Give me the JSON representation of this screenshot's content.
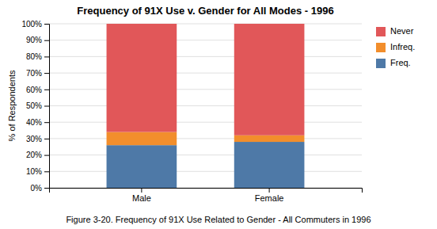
{
  "chart_data": {
    "type": "bar",
    "title": "Frequency of 91X Use v. Gender for All Modes - 1996",
    "caption": "Figure 3-20. Frequency of 91X Use Related to Gender - All Commuters in 1996",
    "ylabel": "% of Respondents",
    "categories": [
      "Male",
      "Female"
    ],
    "series": [
      {
        "name": "Freq.",
        "values": [
          26,
          28
        ]
      },
      {
        "name": "Infreq.",
        "values": [
          8,
          4
        ]
      },
      {
        "name": "Never",
        "values": [
          66,
          68
        ]
      }
    ],
    "stacked": true,
    "ylim": [
      0,
      100
    ],
    "yticks": [
      {
        "value": 0,
        "label": "0%"
      },
      {
        "value": 10,
        "label": "10%"
      },
      {
        "value": 20,
        "label": "20%"
      },
      {
        "value": 30,
        "label": "30%"
      },
      {
        "value": 40,
        "label": "40%"
      },
      {
        "value": 50,
        "label": "50%"
      },
      {
        "value": 60,
        "label": "60%"
      },
      {
        "value": 70,
        "label": "70%"
      },
      {
        "value": 80,
        "label": "80%"
      },
      {
        "value": 90,
        "label": "90%"
      },
      {
        "value": 100,
        "label": "100%"
      }
    ],
    "grid": true,
    "legend": "right"
  }
}
